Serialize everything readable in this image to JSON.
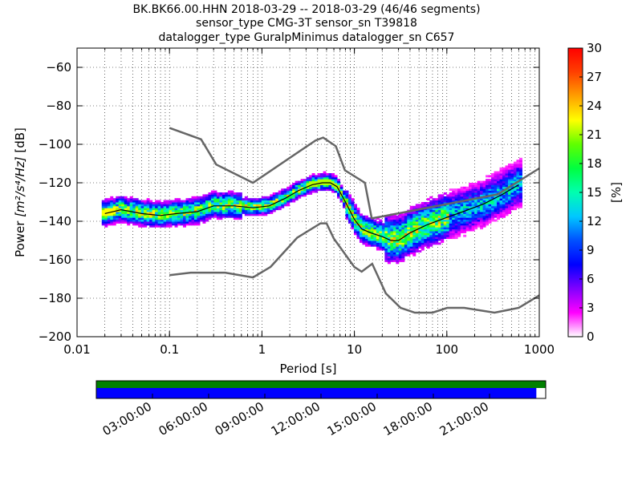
{
  "chart_data": {
    "type": "heatmap",
    "title_lines": [
      "BK.BK66.00.HHN   2018-03-29 -- 2018-03-29  (46/46 segments)",
      "sensor_type CMG-3T sensor_sn T39818",
      "datalogger_type GuralpMinimus datalogger_sn C657"
    ],
    "xlabel": "Period [s]",
    "ylabel_prefix": "Power ",
    "ylabel_math": "[m²/s⁴/Hz]",
    "ylabel_suffix": " [dB]",
    "xscale": "log",
    "xlim": [
      0.01,
      1000
    ],
    "ylim": [
      -200,
      -50
    ],
    "x_ticks": [
      0.01,
      0.1,
      1,
      10,
      100,
      1000
    ],
    "x_tick_labels": [
      "0.01",
      "0.1",
      "1",
      "10",
      "100",
      "1000"
    ],
    "y_ticks": [
      -200,
      -180,
      -160,
      -140,
      -120,
      -100,
      -80,
      -60
    ],
    "y_tick_labels": [
      "−200",
      "−180",
      "−160",
      "−140",
      "−120",
      "−100",
      "−80",
      "−60"
    ],
    "grid": "dotted",
    "colorbar": {
      "label": "[%]",
      "min": 0,
      "max": 30,
      "ticks": [
        0,
        3,
        6,
        9,
        12,
        15,
        18,
        21,
        24,
        27,
        30
      ],
      "tick_labels": [
        "0",
        "3",
        "6",
        "9",
        "12",
        "15",
        "18",
        "21",
        "24",
        "27",
        "30"
      ],
      "colors": [
        "#ffffff",
        "#ff00ff",
        "#8000ff",
        "#0000ff",
        "#0050ff",
        "#00c8ff",
        "#00ffb0",
        "#00ff40",
        "#60ff00",
        "#ffff00",
        "#ffa000",
        "#ff4000",
        "#ff0000"
      ]
    },
    "model_color": "#666666",
    "mean_color": "#000000",
    "nhnm": {
      "x": [
        0.1,
        0.22,
        0.32,
        0.8,
        3.8,
        4.6,
        6.3,
        7.9,
        13,
        15.4,
        20,
        354.8,
        1000
      ],
      "y": [
        -91.5,
        -97.4,
        -110.5,
        -120,
        -98,
        -96.5,
        -101,
        -113.5,
        -120,
        -138.5,
        -137.5,
        -126,
        -112.5
      ]
    },
    "nlnm": {
      "x": [
        0.1,
        0.17,
        0.4,
        0.8,
        1.24,
        2.4,
        4.3,
        5,
        6,
        10,
        12,
        15.6,
        21.9,
        31.6,
        45,
        70,
        101,
        154,
        328,
        600,
        1000
      ],
      "y": [
        -168,
        -166.7,
        -166.7,
        -169.2,
        -163.7,
        -148.6,
        -141.1,
        -141.1,
        -149,
        -163.8,
        -166.2,
        -162.1,
        -177.5,
        -185,
        -187.5,
        -187.5,
        -185,
        -185,
        -187.5,
        -185,
        -178.5
      ]
    },
    "mean_curve": {
      "x": [
        0.02,
        0.03,
        0.05,
        0.08,
        0.12,
        0.2,
        0.3,
        0.5,
        0.8,
        1.2,
        1.8,
        2.5,
        3.5,
        4.5,
        5.5,
        6.5,
        8,
        10,
        12,
        15,
        20,
        25,
        30,
        40,
        60,
        100,
        150,
        250,
        400,
        600
      ],
      "y": [
        -136,
        -134,
        -136,
        -137,
        -136,
        -135,
        -132,
        -132,
        -133,
        -132,
        -128,
        -124,
        -121,
        -120,
        -120,
        -122,
        -130,
        -139,
        -144,
        -146,
        -148,
        -150,
        -150,
        -146,
        -142,
        -138,
        -135,
        -131,
        -126,
        -121
      ]
    },
    "time_axis": {
      "tick_labels": [
        "03:00:00",
        "06:00:00",
        "09:00:00",
        "12:00:00",
        "15:00:00",
        "18:00:00",
        "21:00:00"
      ],
      "tick_hours": [
        3,
        6,
        9,
        12,
        15,
        18,
        21
      ],
      "span_hours": 24,
      "coverage_colors": {
        "top": "#008000",
        "bottom": "#0000ff"
      },
      "data_coverage_end_hour": 23.5
    }
  }
}
